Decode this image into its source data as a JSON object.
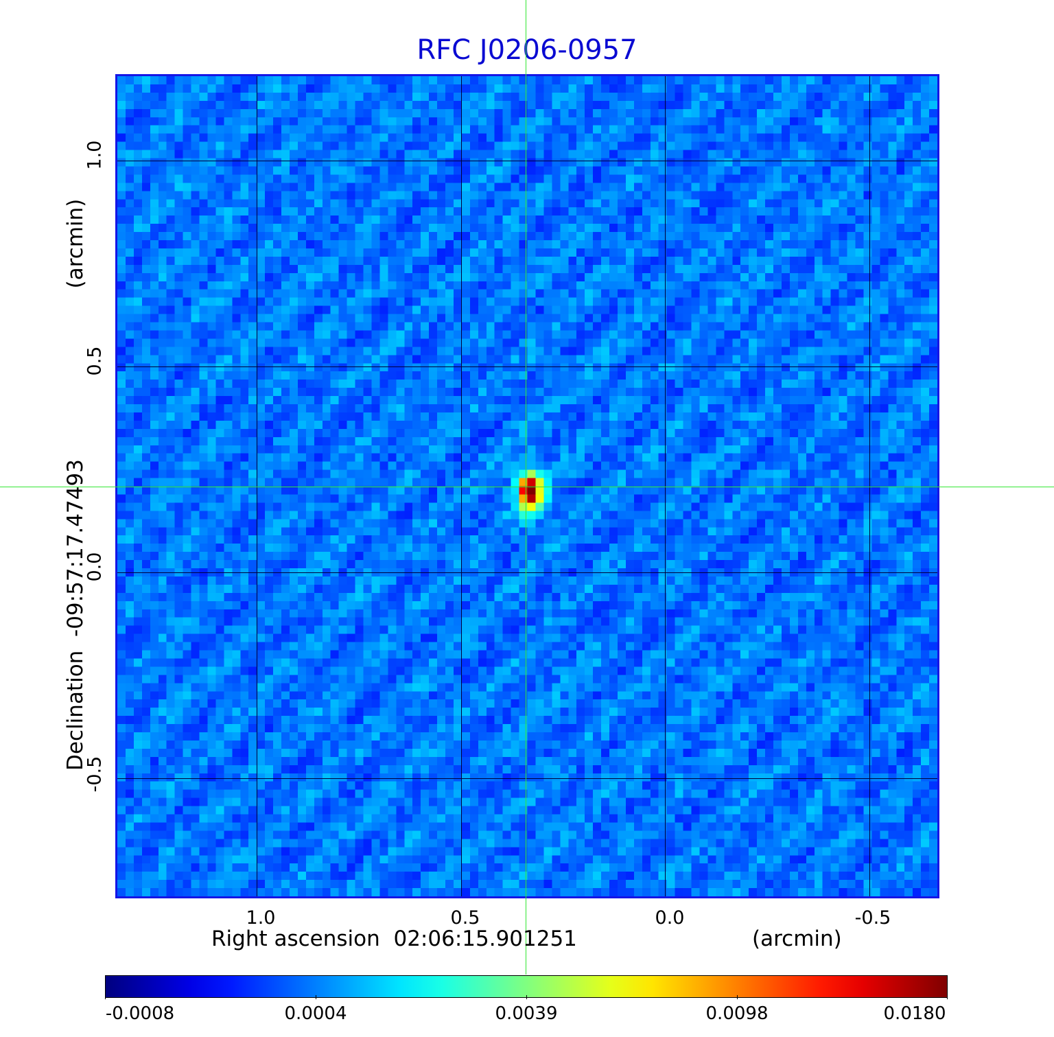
{
  "title": "RFC J0206-0957",
  "x_axis": {
    "label": "Right ascension  02:06:15.901251",
    "unit": "(arcmin)",
    "ticks": [
      "1.0",
      "0.5",
      "0.0",
      "-0.5"
    ]
  },
  "y_axis": {
    "label": "Declination  -09:57:17.47493",
    "unit": "(arcmin)",
    "ticks": [
      "1.0",
      "0.5",
      "0.0",
      "-0.5"
    ]
  },
  "colorbar": {
    "ticks": [
      "-0.0008",
      "0.0004",
      "0.0039",
      "0.0098",
      "0.0180"
    ],
    "colormap": "jet"
  },
  "colors": {
    "title": "#0a0ad2",
    "crosshair": "#33e633",
    "frame": "#1515e6"
  }
}
